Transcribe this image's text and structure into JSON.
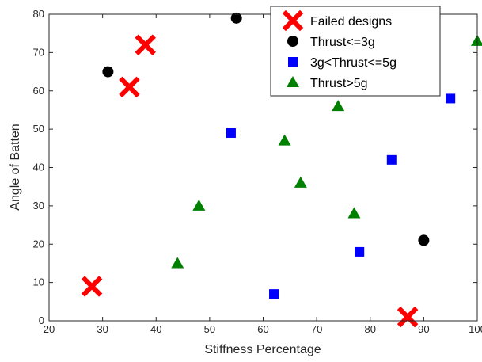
{
  "chart_data": {
    "type": "scatter",
    "title": "",
    "xlabel": "Stiffness Percentage",
    "ylabel": "Angle of Batten",
    "xlim": [
      20,
      100
    ],
    "ylim": [
      0,
      80
    ],
    "xticks": [
      20,
      30,
      40,
      50,
      60,
      70,
      80,
      90,
      100
    ],
    "yticks": [
      0,
      10,
      20,
      30,
      40,
      50,
      60,
      70,
      80
    ],
    "xtick_labels": [
      "20",
      "30",
      "40",
      "50",
      "60",
      "70",
      "80",
      "90",
      "100"
    ],
    "ytick_labels": [
      "0",
      "10",
      "20",
      "30",
      "40",
      "50",
      "60",
      "70",
      "80"
    ],
    "grid": false,
    "legend_position": "top-right",
    "series": [
      {
        "name": "Failed designs",
        "marker": "x",
        "color": "#ff0000",
        "points": [
          [
            38,
            72
          ],
          [
            35,
            61
          ],
          [
            28,
            9
          ],
          [
            87,
            1
          ]
        ]
      },
      {
        "name": "Thrust<=3g",
        "marker": "circle",
        "color": "#000000",
        "points": [
          [
            31,
            65
          ],
          [
            55,
            79
          ],
          [
            90,
            21
          ]
        ]
      },
      {
        "name": "3g<Thrust<=5g",
        "marker": "square",
        "color": "#0000ff",
        "points": [
          [
            54,
            49
          ],
          [
            62,
            7
          ],
          [
            78,
            18
          ],
          [
            84,
            42
          ],
          [
            95,
            58
          ]
        ]
      },
      {
        "name": "Thrust>5g",
        "marker": "triangle",
        "color": "#008000",
        "points": [
          [
            44,
            15
          ],
          [
            48,
            30
          ],
          [
            64,
            47
          ],
          [
            67,
            36
          ],
          [
            74,
            56
          ],
          [
            77,
            28
          ],
          [
            100,
            73
          ]
        ]
      }
    ]
  }
}
